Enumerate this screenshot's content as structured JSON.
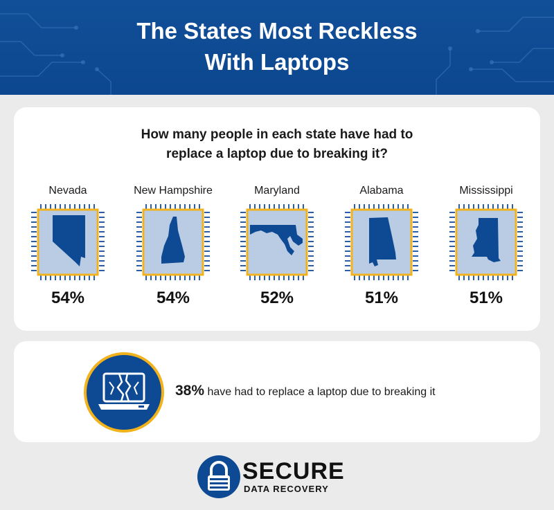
{
  "header": {
    "title_line1": "The States Most Reckless",
    "title_line2": "With Laptops"
  },
  "states_card": {
    "question_line1": "How many people in each state have had to",
    "question_line2": "replace a laptop due to breaking it?",
    "states": [
      {
        "name": "Nevada",
        "percent": "54%"
      },
      {
        "name": "New Hampshire",
        "percent": "54%"
      },
      {
        "name": "Maryland",
        "percent": "52%"
      },
      {
        "name": "Alabama",
        "percent": "51%"
      },
      {
        "name": "Mississippi",
        "percent": "51%"
      }
    ]
  },
  "stat_card": {
    "icon": "broken-laptop-icon",
    "value": "38%",
    "text": " have had to replace a laptop due to breaking it"
  },
  "logo": {
    "word": "SECURE",
    "sub": "DATA RECOVERY"
  },
  "colors": {
    "header_blue": "#0e4a93",
    "chip_fill": "#b9cce4",
    "chip_border": "#f2b21b",
    "state_fill": "#0e4a93",
    "background": "#ebebeb"
  }
}
